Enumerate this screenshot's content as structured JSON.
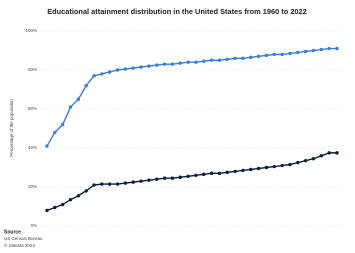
{
  "chart_data": {
    "type": "line",
    "title": "Educational attainment distribution in the United States from 1960 to 2022",
    "y_label": "Percentage of the population",
    "source_label": "Source",
    "source": "US Census Bureau",
    "copyright": "© Statista 2024",
    "categories": [
      null,
      null,
      null,
      null,
      null,
      null,
      null,
      null,
      null,
      null,
      null,
      null,
      null,
      null,
      null,
      null,
      null,
      null,
      null,
      null,
      null,
      null,
      null,
      null,
      null,
      null,
      null,
      null,
      null,
      null,
      null,
      null,
      null,
      null,
      null,
      null,
      null,
      null
    ],
    "series": [
      {
        "color": "#3a7fd5",
        "values": [
          41,
          48,
          52,
          61,
          65,
          72,
          77,
          78,
          79,
          80,
          80.5,
          81,
          81.5,
          82,
          82.5,
          83,
          83,
          83.5,
          84,
          84,
          84.5,
          85,
          85,
          85.5,
          86,
          86,
          86.5,
          87,
          87.5,
          88,
          88,
          88.5,
          89,
          89.5,
          90,
          90.5,
          91,
          91
        ]
      },
      {
        "color": "#0d1f3c",
        "values": [
          8,
          9.5,
          11,
          13.5,
          15.5,
          18,
          21,
          21.5,
          21.5,
          21.5,
          22,
          22.5,
          23,
          23.5,
          24,
          24.5,
          24.5,
          25,
          25.5,
          26,
          26.5,
          27,
          27,
          27.5,
          28,
          28.5,
          29,
          29.5,
          30,
          30.5,
          31,
          31.5,
          32.5,
          33.5,
          34.5,
          36,
          37.5,
          37.5
        ]
      }
    ],
    "ylim": [
      0,
      100
    ],
    "yticks": [
      {
        "value": 0,
        "label": "0%"
      },
      {
        "value": 20,
        "label": "20%"
      },
      {
        "value": 40,
        "label": "40%"
      },
      {
        "value": 60,
        "label": "60%"
      },
      {
        "value": 80,
        "label": "80%"
      },
      {
        "value": 100,
        "label": "100%"
      }
    ],
    "grid": true
  }
}
